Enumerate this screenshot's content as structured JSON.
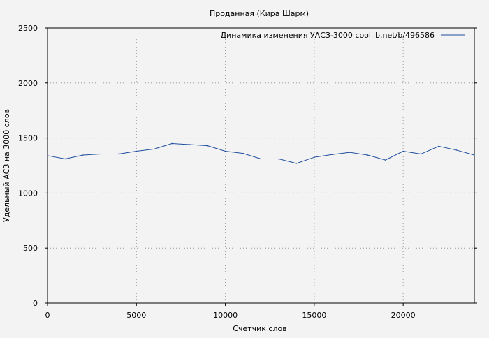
{
  "chart_data": {
    "type": "line",
    "title": "Проданная (Кира Шарм)",
    "xlabel": "Счетчик слов",
    "ylabel": "Удельный АСЗ на 3000 слов",
    "xlim": [
      0,
      24000
    ],
    "ylim": [
      0,
      2500
    ],
    "x_ticks": [
      0,
      5000,
      10000,
      15000,
      20000
    ],
    "y_ticks": [
      0,
      500,
      1000,
      1500,
      2000,
      2500
    ],
    "grid": true,
    "legend_position": "top-right",
    "series": [
      {
        "name": "Динамика изменения УАСЗ-3000  coollib.net/b/496586",
        "color": "#1f4e9e",
        "x": [
          0,
          1000,
          2000,
          3000,
          4000,
          5000,
          6000,
          7000,
          8000,
          9000,
          10000,
          11000,
          12000,
          13000,
          14000,
          15000,
          16000,
          17000,
          18000,
          19000,
          20000,
          21000,
          22000,
          23000,
          24000
        ],
        "y": [
          1340,
          1310,
          1345,
          1355,
          1355,
          1380,
          1400,
          1450,
          1440,
          1430,
          1380,
          1360,
          1310,
          1310,
          1270,
          1325,
          1350,
          1370,
          1345,
          1300,
          1380,
          1355,
          1425,
          1390,
          1345
        ]
      }
    ]
  }
}
